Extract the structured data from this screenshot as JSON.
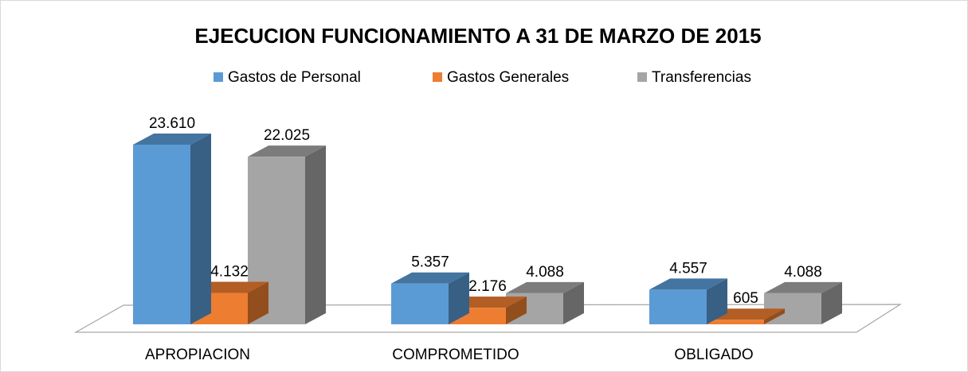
{
  "chart_data": {
    "type": "bar3d",
    "title": "EJECUCION FUNCIONAMIENTO A 31 DE MARZO DE 2015",
    "categories": [
      "APROPIACION",
      "COMPROMETIDO",
      "OBLIGADO"
    ],
    "series": [
      {
        "name": "Gastos de Personal",
        "color": "#5b9bd5",
        "values": [
          23610,
          5357,
          4557
        ],
        "value_labels": [
          "23.610",
          "5.357",
          "4.557"
        ]
      },
      {
        "name": "Gastos Generales",
        "color": "#ed7d31",
        "values": [
          4132,
          2176,
          605
        ],
        "value_labels": [
          "4.132",
          "2.176",
          "605"
        ]
      },
      {
        "name": "Transferencias",
        "color": "#a5a5a5",
        "values": [
          22025,
          4088,
          4088
        ],
        "value_labels": [
          "22.025",
          "4.088",
          "4.088"
        ]
      }
    ],
    "legend": "top"
  }
}
